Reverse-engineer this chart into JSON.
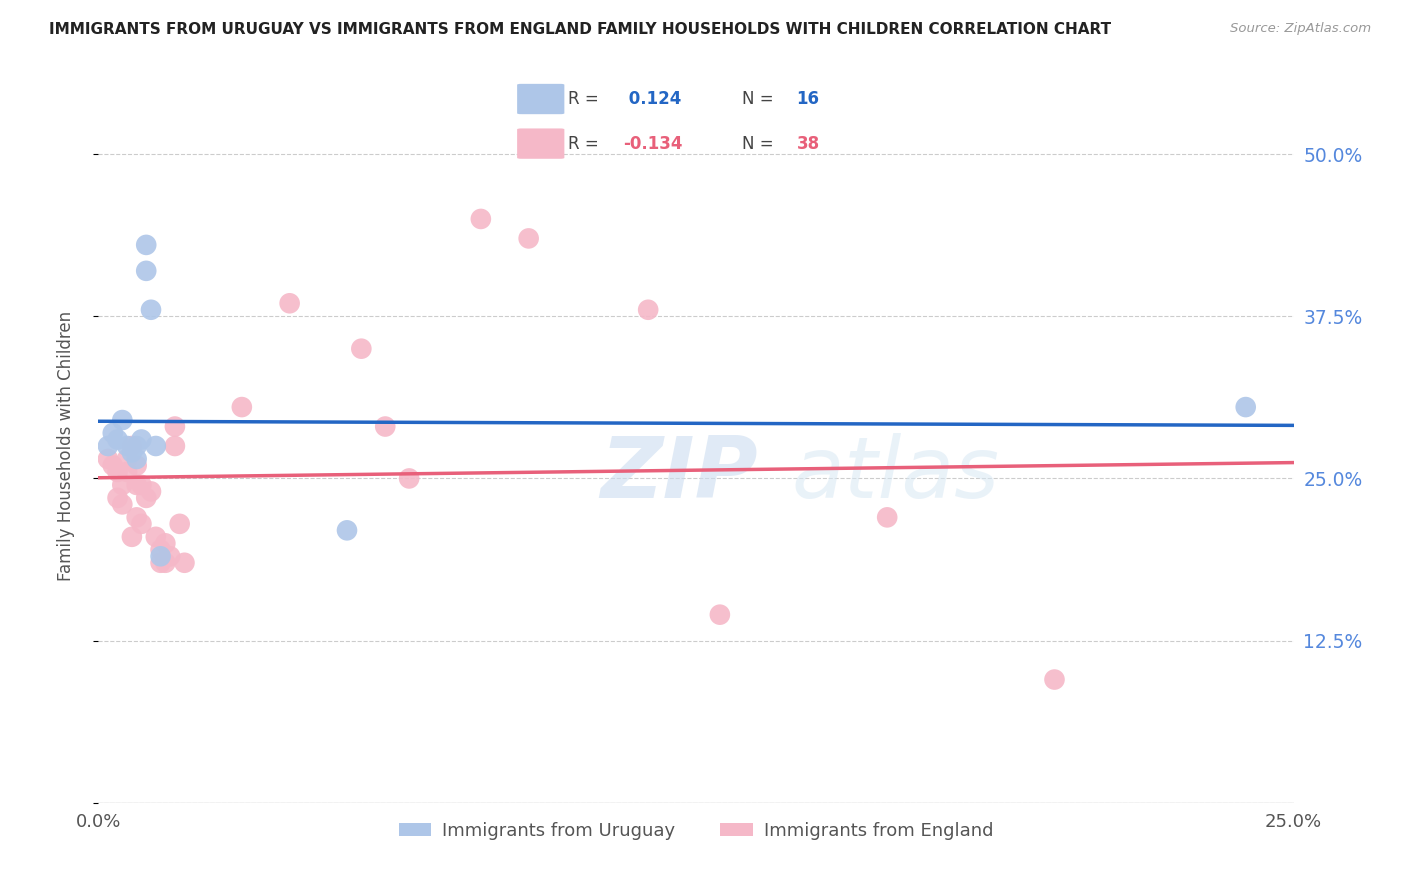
{
  "title": "IMMIGRANTS FROM URUGUAY VS IMMIGRANTS FROM ENGLAND FAMILY HOUSEHOLDS WITH CHILDREN CORRELATION CHART",
  "source": "Source: ZipAtlas.com",
  "ylabel": "Family Households with Children",
  "xlim": [
    0.0,
    0.25
  ],
  "ylim": [
    0.0,
    0.55
  ],
  "yticks": [
    0.0,
    0.125,
    0.25,
    0.375,
    0.5
  ],
  "ytick_labels": [
    "",
    "12.5%",
    "25.0%",
    "37.5%",
    "50.0%"
  ],
  "xticks": [
    0.0,
    0.05,
    0.1,
    0.15,
    0.2,
    0.25
  ],
  "xtick_labels": [
    "0.0%",
    "",
    "",
    "",
    "",
    "25.0%"
  ],
  "uruguay_color": "#aec6e8",
  "england_color": "#f5b8c8",
  "uruguay_line_color": "#2366c4",
  "england_line_color": "#e8607a",
  "r_color": "#2366c4",
  "n_color": "#2366c4",
  "legend_r_uruguay": " 0.124",
  "legend_n_uruguay": "16",
  "legend_r_england": "-0.134",
  "legend_n_england": "38",
  "uruguay_x": [
    0.002,
    0.003,
    0.004,
    0.005,
    0.006,
    0.007,
    0.008,
    0.008,
    0.009,
    0.01,
    0.01,
    0.011,
    0.012,
    0.013,
    0.052,
    0.24
  ],
  "uruguay_y": [
    0.275,
    0.285,
    0.28,
    0.295,
    0.275,
    0.27,
    0.275,
    0.265,
    0.28,
    0.43,
    0.41,
    0.38,
    0.275,
    0.19,
    0.21,
    0.305
  ],
  "england_x": [
    0.002,
    0.003,
    0.004,
    0.004,
    0.005,
    0.005,
    0.006,
    0.006,
    0.007,
    0.007,
    0.008,
    0.008,
    0.008,
    0.009,
    0.009,
    0.01,
    0.011,
    0.012,
    0.013,
    0.013,
    0.014,
    0.014,
    0.015,
    0.016,
    0.016,
    0.017,
    0.018,
    0.03,
    0.04,
    0.055,
    0.06,
    0.065,
    0.08,
    0.09,
    0.115,
    0.13,
    0.165,
    0.2
  ],
  "england_y": [
    0.265,
    0.26,
    0.235,
    0.255,
    0.245,
    0.23,
    0.265,
    0.255,
    0.275,
    0.205,
    0.26,
    0.245,
    0.22,
    0.245,
    0.215,
    0.235,
    0.24,
    0.205,
    0.195,
    0.185,
    0.2,
    0.185,
    0.19,
    0.29,
    0.275,
    0.215,
    0.185,
    0.305,
    0.385,
    0.35,
    0.29,
    0.25,
    0.45,
    0.435,
    0.38,
    0.145,
    0.22,
    0.095
  ],
  "watermark_zip": "ZIP",
  "watermark_atlas": "atlas",
  "background_color": "#ffffff",
  "grid_color": "#cccccc",
  "spine_color": "#cccccc",
  "tick_label_color": "#5588dd",
  "ylabel_color": "#555555",
  "title_color": "#222222",
  "source_color": "#999999"
}
